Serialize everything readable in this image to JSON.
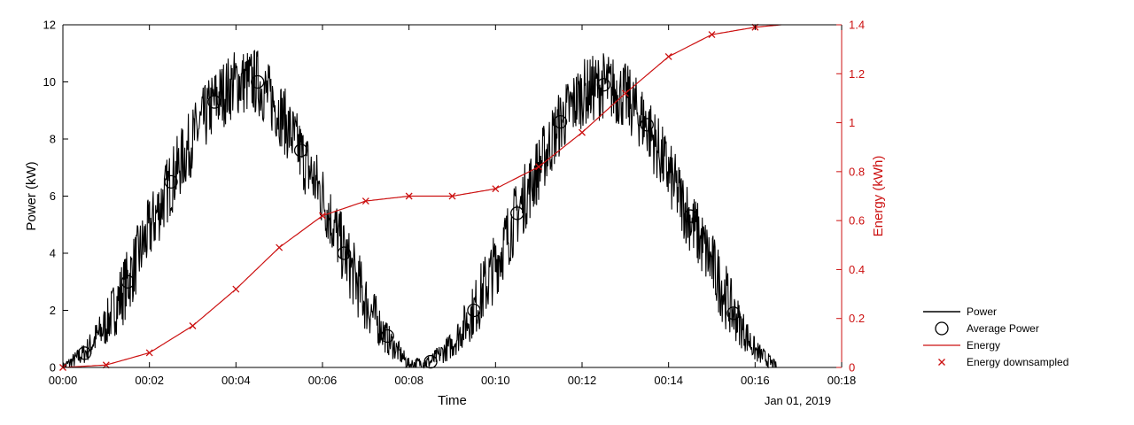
{
  "colors": {
    "power": "#000000",
    "energy": "#cc1111",
    "axis": "#000000"
  },
  "chart_data": {
    "type": "line",
    "xlabel": "Time",
    "date_label": "Jan 01, 2019",
    "x_tick_labels": [
      "00:00",
      "00:02",
      "00:04",
      "00:06",
      "00:08",
      "00:10",
      "00:12",
      "00:14",
      "00:16",
      "00:18"
    ],
    "xlim": [
      0,
      18
    ],
    "y_left": {
      "label": "Power (kW)",
      "lim": [
        0,
        12
      ],
      "ticks": [
        "0",
        "2",
        "4",
        "6",
        "8",
        "10",
        "12"
      ]
    },
    "y_right": {
      "label": "Energy (kWh)",
      "lim": [
        0,
        1.4
      ],
      "ticks": [
        "0",
        "0.2",
        "0.4",
        "0.6",
        "0.8",
        "1",
        "1.2",
        "1.4"
      ]
    },
    "legend": {
      "position": "outside-right-bottom",
      "entries": [
        "Power",
        "Average Power",
        "Energy",
        "Energy downsampled"
      ]
    },
    "series": [
      {
        "name": "Power",
        "axis": "left",
        "style": "noisy-line",
        "x": [
          0,
          0.5,
          1,
          1.5,
          2,
          2.5,
          3,
          3.5,
          4,
          4.5,
          5,
          5.5,
          6,
          6.5,
          7,
          7.5,
          8,
          8.5,
          9,
          9.5,
          10,
          10.5,
          11,
          11.5,
          12,
          12.5,
          13,
          13.5,
          14,
          14.5,
          15,
          15.5,
          16,
          16.5
        ],
        "y": [
          0,
          0.5,
          1.5,
          3.0,
          4.8,
          6.5,
          8.0,
          9.3,
          10.0,
          10.0,
          9.0,
          7.5,
          6.0,
          4.0,
          2.3,
          1.0,
          0.1,
          0.2,
          0.8,
          2.0,
          3.6,
          5.4,
          7.0,
          8.6,
          9.6,
          9.9,
          9.5,
          8.5,
          6.8,
          5.2,
          3.6,
          1.9,
          0.6,
          0
        ],
        "noise_amplitude": 1.2
      },
      {
        "name": "Average Power",
        "axis": "left",
        "style": "circle-markers",
        "x": [
          0.5,
          1.5,
          2.5,
          3.5,
          4.5,
          5.5,
          6.5,
          7.5,
          8.5,
          9.5,
          10.5,
          11.5,
          12.5,
          13.5,
          14.5,
          15.5
        ],
        "y": [
          0.5,
          3.0,
          6.5,
          9.3,
          10.0,
          7.6,
          4.0,
          1.1,
          0.2,
          2.0,
          5.4,
          8.6,
          9.9,
          8.5,
          5.3,
          1.9
        ]
      },
      {
        "name": "Energy",
        "axis": "right",
        "style": "line",
        "x": [
          0,
          1,
          2,
          3,
          4,
          5,
          6,
          7,
          8,
          9,
          10,
          11,
          12,
          13,
          14,
          15,
          16,
          16.6
        ],
        "y": [
          0,
          0.01,
          0.06,
          0.17,
          0.32,
          0.49,
          0.62,
          0.68,
          0.7,
          0.7,
          0.73,
          0.82,
          0.96,
          1.12,
          1.27,
          1.36,
          1.39,
          1.4
        ]
      },
      {
        "name": "Energy downsampled",
        "axis": "right",
        "style": "x-markers",
        "x": [
          0,
          1,
          2,
          3,
          4,
          5,
          6,
          7,
          8,
          9,
          10,
          11,
          12,
          13,
          14,
          15,
          16
        ],
        "y": [
          0,
          0.01,
          0.06,
          0.17,
          0.32,
          0.49,
          0.62,
          0.68,
          0.7,
          0.7,
          0.73,
          0.82,
          0.96,
          1.12,
          1.27,
          1.36,
          1.39
        ]
      }
    ]
  }
}
